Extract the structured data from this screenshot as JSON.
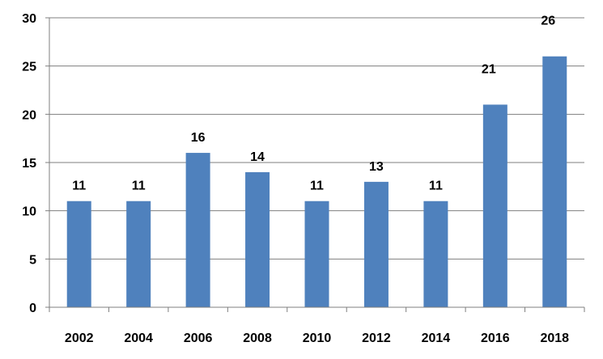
{
  "chart_data": {
    "type": "bar",
    "categories": [
      "2002",
      "2004",
      "2006",
      "2008",
      "2010",
      "2012",
      "2014",
      "2016",
      "2018"
    ],
    "values": [
      11,
      11,
      16,
      14,
      11,
      13,
      11,
      21,
      26
    ],
    "title": "",
    "xlabel": "",
    "ylabel": "",
    "ylim": [
      0,
      30
    ],
    "yticks": [
      0,
      5,
      10,
      15,
      20,
      25,
      30
    ],
    "grid": true,
    "legend": "none",
    "bar_color": "#4F81BD",
    "gridline_color": "#7F7F7F"
  }
}
